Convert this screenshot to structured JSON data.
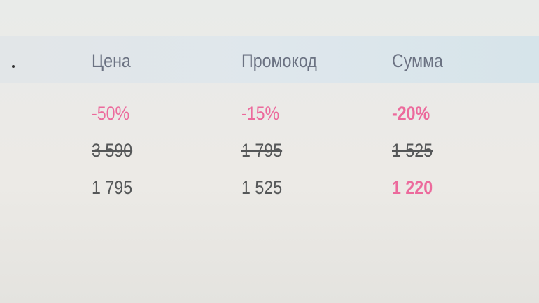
{
  "columns": [
    "Цена",
    "Промокод",
    "Сумма"
  ],
  "discounts": [
    "-50%",
    "-15%",
    "-20%"
  ],
  "old_prices": [
    "3 590",
    "1 795",
    "1 525"
  ],
  "new_prices": [
    "1 795",
    "1 525",
    "1 220"
  ],
  "colors": {
    "accent": "#ec6a9c",
    "header_text": "#6b7282",
    "text": "#555758"
  }
}
